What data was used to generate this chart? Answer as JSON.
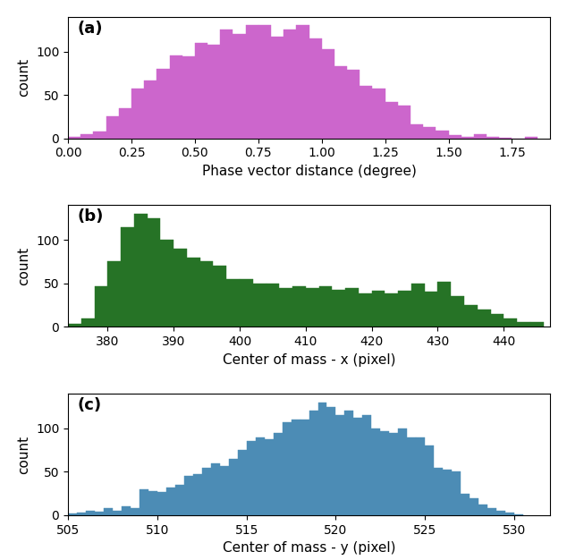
{
  "subplot_a": {
    "label": "(a)",
    "color": "#CC66CC",
    "xlabel": "Phase vector distance (degree)",
    "ylabel": "count",
    "xlim": [
      0.0,
      1.9
    ],
    "ylim": [
      0,
      140
    ],
    "xticks": [
      0.0,
      0.25,
      0.5,
      0.75,
      1.0,
      1.25,
      1.5,
      1.75
    ],
    "yticks": [
      0,
      50,
      100
    ],
    "bin_edges": [
      0.0,
      0.05,
      0.1,
      0.15,
      0.2,
      0.25,
      0.3,
      0.35,
      0.4,
      0.45,
      0.5,
      0.55,
      0.6,
      0.65,
      0.7,
      0.75,
      0.8,
      0.85,
      0.9,
      0.95,
      1.0,
      1.05,
      1.1,
      1.15,
      1.2,
      1.25,
      1.3,
      1.35,
      1.4,
      1.45,
      1.5,
      1.55,
      1.6,
      1.65,
      1.7,
      1.75,
      1.8,
      1.85
    ],
    "counts": [
      2,
      5,
      8,
      25,
      35,
      57,
      67,
      80,
      95,
      94,
      110,
      108,
      125,
      120,
      130,
      130,
      117,
      125,
      130,
      115,
      103,
      83,
      79,
      60,
      57,
      42,
      38,
      16,
      13,
      9,
      4,
      2,
      5,
      2,
      1,
      0,
      2
    ]
  },
  "subplot_b": {
    "label": "(b)",
    "color": "#267326",
    "xlabel": "Center of mass - x (pixel)",
    "ylabel": "count",
    "xlim": [
      374,
      447
    ],
    "ylim": [
      0,
      140
    ],
    "yticks": [
      0,
      50,
      100
    ],
    "bin_edges": [
      374,
      376,
      378,
      380,
      382,
      384,
      386,
      388,
      390,
      392,
      394,
      396,
      398,
      400,
      402,
      404,
      406,
      408,
      410,
      412,
      414,
      416,
      418,
      420,
      422,
      424,
      426,
      428,
      430,
      432,
      434,
      436,
      438,
      440,
      442,
      444,
      446
    ],
    "counts": [
      3,
      10,
      47,
      75,
      115,
      130,
      125,
      100,
      90,
      80,
      75,
      70,
      55,
      55,
      50,
      50,
      45,
      47,
      45,
      47,
      43,
      45,
      38,
      42,
      38,
      42,
      50,
      40,
      52,
      35,
      25,
      20,
      15,
      10,
      5,
      5
    ]
  },
  "subplot_c": {
    "label": "(c)",
    "color": "#4C8CB5",
    "xlabel": "Center of mass - y (pixel)",
    "ylabel": "count",
    "xlim": [
      505,
      532
    ],
    "ylim": [
      0,
      140
    ],
    "yticks": [
      0,
      50,
      100
    ],
    "bin_edges": [
      505.0,
      505.5,
      506.0,
      506.5,
      507.0,
      507.5,
      508.0,
      508.5,
      509.0,
      509.5,
      510.0,
      510.5,
      511.0,
      511.5,
      512.0,
      512.5,
      513.0,
      513.5,
      514.0,
      514.5,
      515.0,
      515.5,
      516.0,
      516.5,
      517.0,
      517.5,
      518.0,
      518.5,
      519.0,
      519.5,
      520.0,
      520.5,
      521.0,
      521.5,
      522.0,
      522.5,
      523.0,
      523.5,
      524.0,
      524.5,
      525.0,
      525.5,
      526.0,
      526.5,
      527.0,
      527.5,
      528.0,
      528.5,
      529.0,
      529.5,
      530.0,
      530.5
    ],
    "counts": [
      2,
      3,
      5,
      4,
      8,
      5,
      10,
      8,
      30,
      28,
      27,
      32,
      35,
      45,
      47,
      55,
      60,
      57,
      65,
      75,
      85,
      90,
      88,
      95,
      107,
      110,
      110,
      120,
      130,
      125,
      115,
      120,
      112,
      115,
      100,
      97,
      95,
      100,
      90,
      90,
      80,
      55,
      52,
      50,
      25,
      20,
      12,
      8,
      5,
      3,
      1
    ]
  },
  "fig_width": 6.34,
  "fig_height": 6.26,
  "dpi": 100
}
